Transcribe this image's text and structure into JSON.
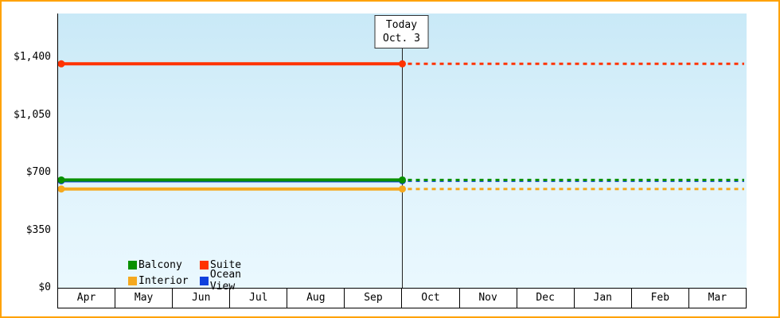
{
  "chart_data": {
    "type": "line",
    "title": "",
    "xlabel": "",
    "ylabel": "",
    "x_categories": [
      "Apr",
      "May",
      "Jun",
      "Jul",
      "Aug",
      "Sep",
      "Oct",
      "Nov",
      "Dec",
      "Jan",
      "Feb",
      "Mar"
    ],
    "y_ticks": [
      {
        "label": "$0",
        "value": 0
      },
      {
        "label": "$350",
        "value": 350
      },
      {
        "label": "$700",
        "value": 700
      },
      {
        "label": "$1,050",
        "value": 1050
      },
      {
        "label": "$1,400",
        "value": 1400
      }
    ],
    "ylim": [
      0,
      1665
    ],
    "grid": "off",
    "today_marker": {
      "title": "Today",
      "date": "Oct. 3",
      "boundary_index": 6,
      "note": "vertical line at Sep/Oct boundary; solid history left of line, dashed projection right of line"
    },
    "series": [
      {
        "name": "Suite",
        "color": "#ff3300",
        "value": 1360,
        "past_style": "solid",
        "future_style": "dashed"
      },
      {
        "name": "Interior",
        "color": "#f5a91f",
        "value": 600,
        "past_style": "solid",
        "future_style": "dashed"
      },
      {
        "name": "Ocean View",
        "color": "#1040dd",
        "value": 650,
        "past_style": "solid",
        "future_style": "dashed"
      },
      {
        "name": "Balcony",
        "color": "#089000",
        "value": 655,
        "past_style": "solid",
        "future_style": "dashed"
      }
    ],
    "legend": {
      "position": "bottom-left-inside",
      "rows": [
        [
          "Balcony",
          "Suite"
        ],
        [
          "Interior",
          "Ocean View"
        ]
      ]
    },
    "frame_border_color": "#ffa200",
    "plot_bg_top_color": "#c9e9f7",
    "plot_bg_bottom_color": "#eaf8fe"
  }
}
